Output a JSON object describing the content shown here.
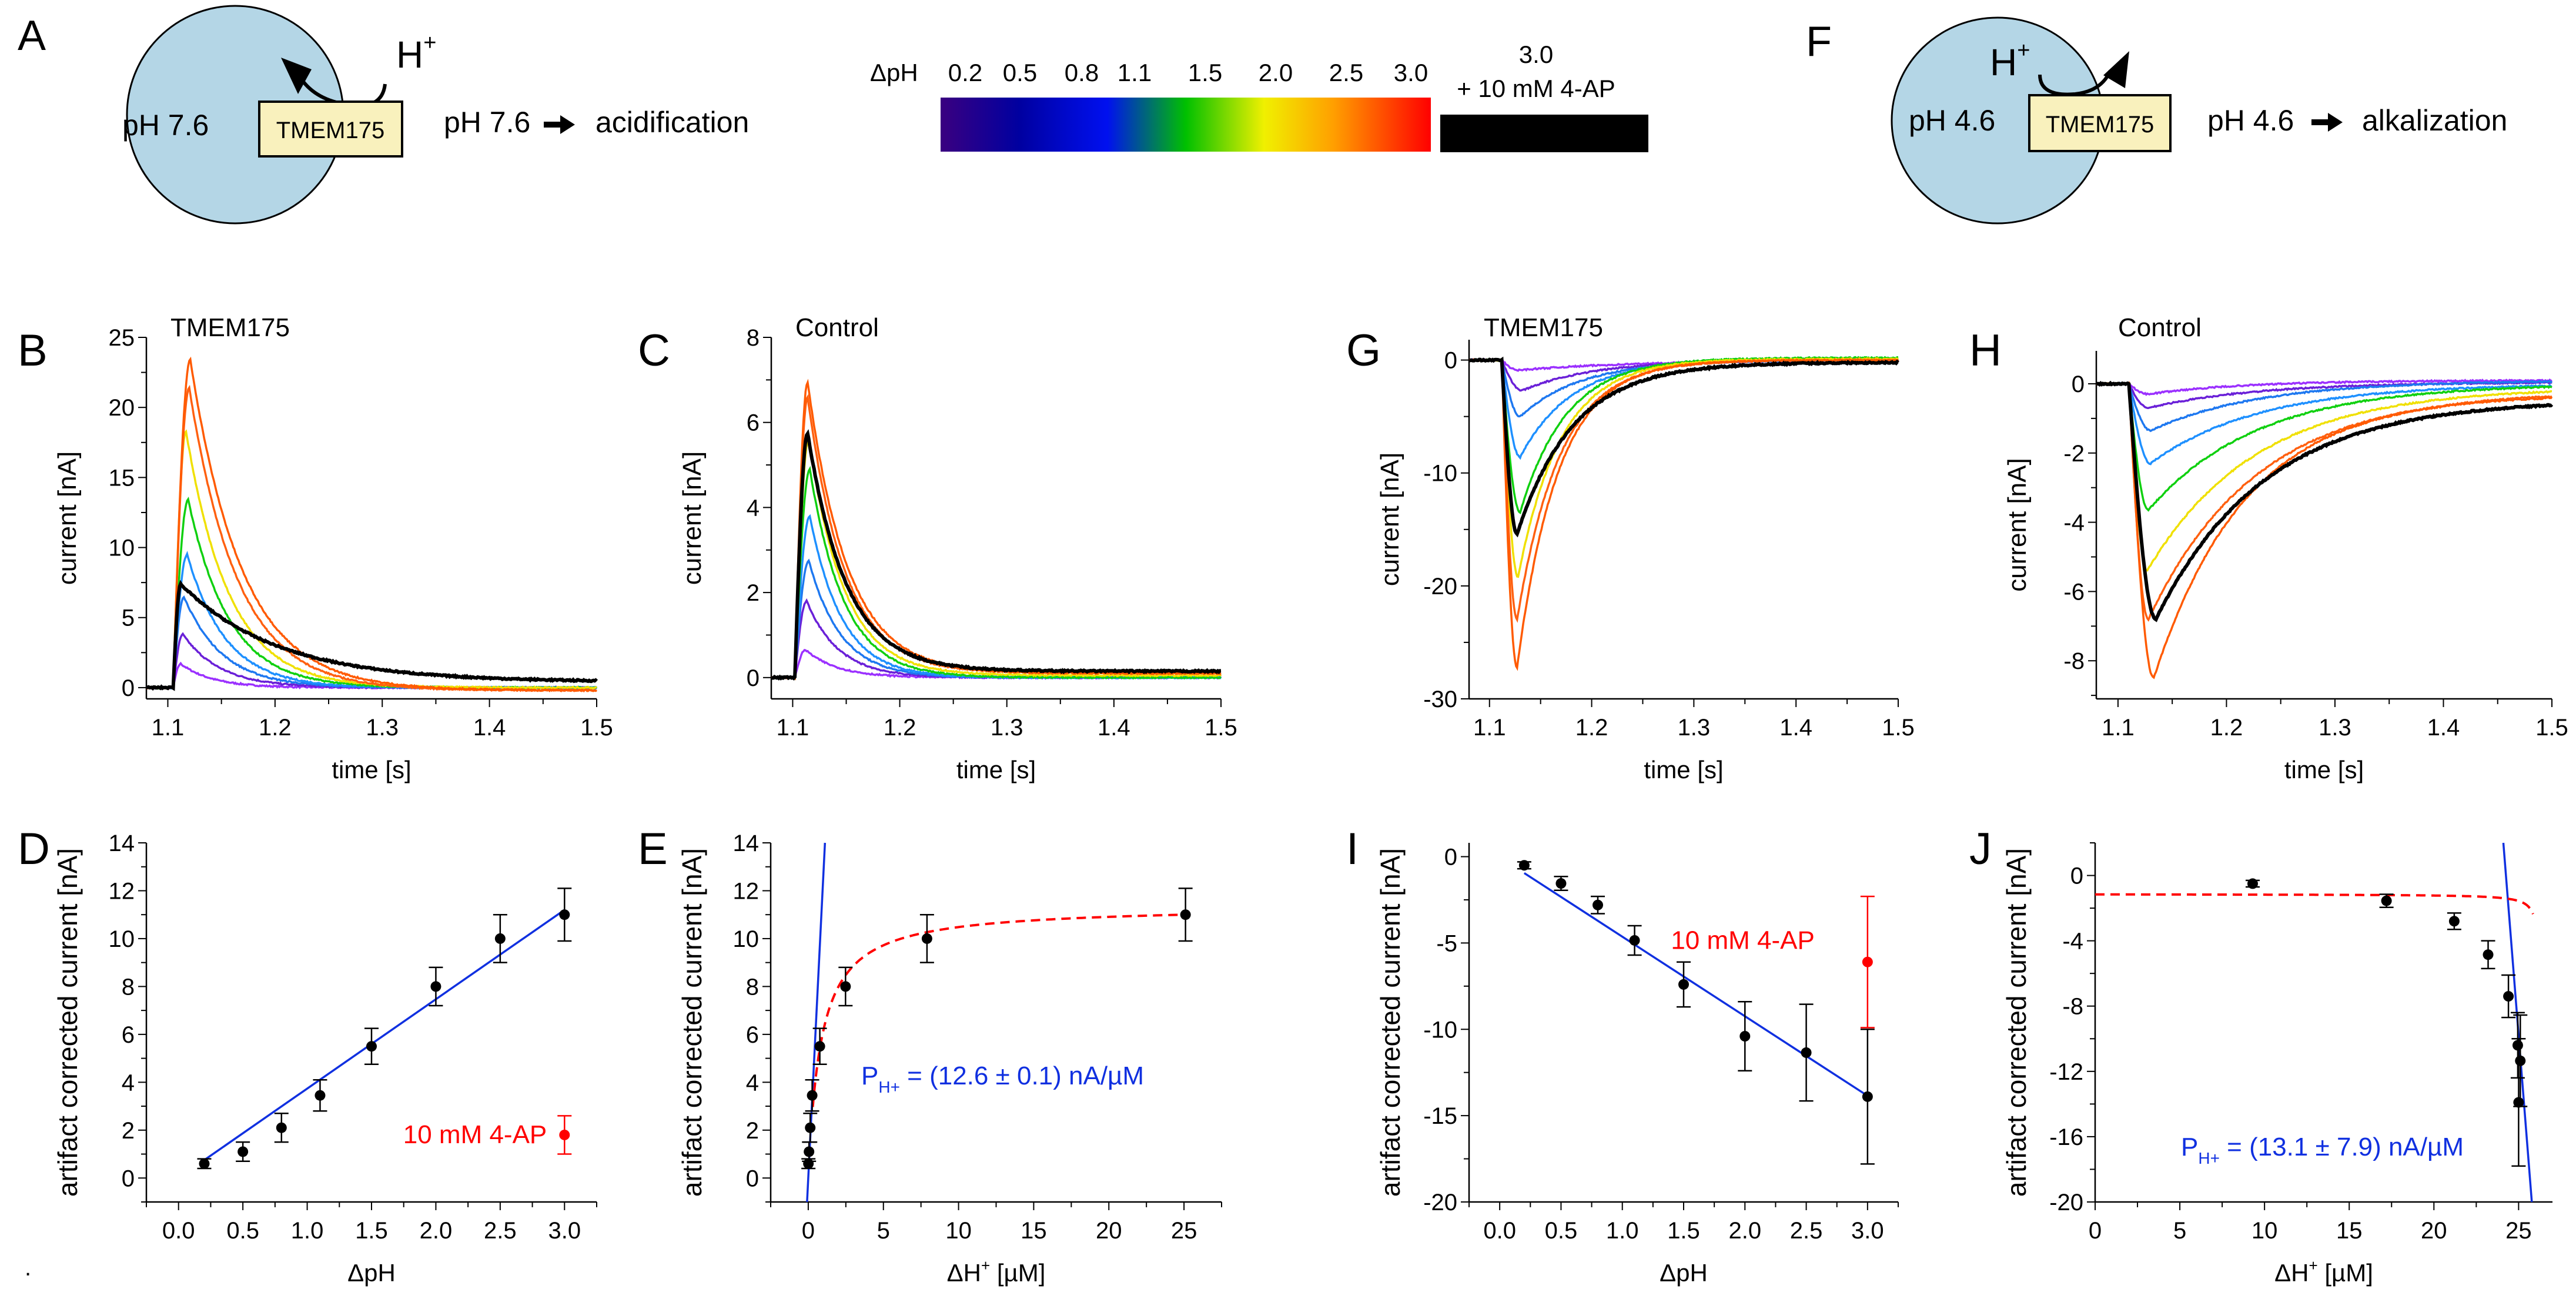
{
  "schematics": [
    {
      "id": "A",
      "letter": "A",
      "vesicle_label": "pH 7.6",
      "protein_label": "TMEM175",
      "ion_label": "H",
      "ion_charge": "+",
      "direction": "into",
      "result_left": "pH 7.6",
      "result_right": "acidification"
    },
    {
      "id": "F",
      "letter": "F",
      "vesicle_label": "pH 4.6",
      "protein_label": "TMEM175",
      "ion_label": "H",
      "ion_charge": "+",
      "direction": "out",
      "result_left": "pH 4.6",
      "result_right": "alkalization"
    }
  ],
  "colorbar": {
    "label": "ΔpH",
    "ticks": [
      "0.2",
      "0.5",
      "0.8",
      "1.1",
      "1.5",
      "2.0",
      "2.5",
      "3.0"
    ],
    "gradient_colors": [
      "#3a0080",
      "#0000a0",
      "#0010f0",
      "#00c000",
      "#f0f000",
      "#ffa000",
      "#ff0000"
    ],
    "extra_label_line1": "3.0",
    "extra_label_line2": "+ 10 mM 4-AP",
    "extra_color": "#000000"
  },
  "trace_colors": [
    "#9b30ff",
    "#6a20d8",
    "#1e78f0",
    "#1e90ff",
    "#10d010",
    "#f0e000",
    "#ff6010",
    "#ff5a00"
  ],
  "blocker_color": "#000000",
  "fit_blue": "#1030e0",
  "fit_red": "#ff0000",
  "chart_data": [
    {
      "id": "B",
      "letter": "B",
      "type": "line",
      "title": "TMEM175",
      "xlabel": "time [s]",
      "ylabel": "current [nA]",
      "xlim": [
        1.08,
        1.5
      ],
      "ylim": [
        -0.8,
        25
      ],
      "xticks": [
        1.1,
        1.2,
        1.3,
        1.4,
        1.5
      ],
      "xtick_labels": [
        "1.1",
        "1.2",
        "1.3",
        "1.4",
        "1.5"
      ],
      "yticks": [
        0,
        5,
        10,
        15,
        20,
        25
      ],
      "ytick_labels": [
        "0",
        "5",
        "10",
        "15",
        "20",
        "25"
      ],
      "onset": 1.105,
      "series": [
        {
          "name": "ΔpH 0.2",
          "peak": 1.7,
          "t_peak": 1.112,
          "tau": 0.03,
          "tail": 0.0
        },
        {
          "name": "ΔpH 0.5",
          "peak": 3.8,
          "t_peak": 1.114,
          "tau": 0.035,
          "tail": 0.0
        },
        {
          "name": "ΔpH 0.8",
          "peak": 6.5,
          "t_peak": 1.115,
          "tau": 0.036,
          "tail": 0.0
        },
        {
          "name": "ΔpH 1.1",
          "peak": 9.5,
          "t_peak": 1.118,
          "tau": 0.036,
          "tail": 0.0
        },
        {
          "name": "ΔpH 1.5",
          "peak": 13.4,
          "t_peak": 1.119,
          "tau": 0.038,
          "tail": 0.0
        },
        {
          "name": "ΔpH 2.0",
          "peak": 18.3,
          "t_peak": 1.117,
          "tau": 0.04,
          "tail": 0.0
        },
        {
          "name": "ΔpH 2.5",
          "peak": 21.4,
          "t_peak": 1.12,
          "tau": 0.045,
          "tail": -0.2
        },
        {
          "name": "ΔpH 3.0",
          "peak": 23.4,
          "t_peak": 1.121,
          "tau": 0.048,
          "tail": -0.2
        },
        {
          "name": "ΔpH 3.0 + 10 mM 4-AP",
          "peak": 7.4,
          "t_peak": 1.112,
          "tau": 0.09,
          "tail": 0.4,
          "blocker": true
        }
      ]
    },
    {
      "id": "C",
      "letter": "C",
      "type": "line",
      "title": "Control",
      "xlabel": "time [s]",
      "ylabel": "current [nA]",
      "xlim": [
        1.08,
        1.5
      ],
      "ylim": [
        -0.5,
        8
      ],
      "xticks": [
        1.1,
        1.2,
        1.3,
        1.4,
        1.5
      ],
      "xtick_labels": [
        "1.1",
        "1.2",
        "1.3",
        "1.4",
        "1.5"
      ],
      "yticks": [
        0,
        2,
        4,
        6,
        8
      ],
      "ytick_labels": [
        "0",
        "2",
        "4",
        "6",
        "8"
      ],
      "onset": 1.102,
      "series": [
        {
          "name": "ΔpH 0.2",
          "peak": 0.65,
          "t_peak": 1.112,
          "tau": 0.03,
          "tail": 0.0
        },
        {
          "name": "ΔpH 0.5",
          "peak": 1.8,
          "t_peak": 1.113,
          "tau": 0.03,
          "tail": 0.0
        },
        {
          "name": "ΔpH 0.8",
          "peak": 2.75,
          "t_peak": 1.115,
          "tau": 0.03,
          "tail": 0.0
        },
        {
          "name": "ΔpH 1.1",
          "peak": 3.8,
          "t_peak": 1.116,
          "tau": 0.03,
          "tail": 0.0
        },
        {
          "name": "ΔpH 1.5",
          "peak": 4.9,
          "t_peak": 1.116,
          "tau": 0.032,
          "tail": 0.0
        },
        {
          "name": "ΔpH 2.0",
          "peak": 5.6,
          "t_peak": 1.115,
          "tau": 0.033,
          "tail": 0.05
        },
        {
          "name": "ΔpH 2.5",
          "peak": 6.6,
          "t_peak": 1.114,
          "tau": 0.035,
          "tail": 0.1
        },
        {
          "name": "ΔpH 3.0",
          "peak": 6.95,
          "t_peak": 1.114,
          "tau": 0.037,
          "tail": 0.1
        },
        {
          "name": "ΔpH 3.0 + 10 mM 4-AP",
          "peak": 5.75,
          "t_peak": 1.114,
          "tau": 0.036,
          "tail": 0.15,
          "blocker": true
        }
      ]
    },
    {
      "id": "G",
      "letter": "G",
      "type": "line",
      "title": "TMEM175",
      "xlabel": "time [s]",
      "ylabel": "current [nA]",
      "xlim": [
        1.08,
        1.5
      ],
      "ylim": [
        -30,
        1.8
      ],
      "xticks": [
        1.1,
        1.2,
        1.3,
        1.4,
        1.5
      ],
      "xtick_labels": [
        "1.1",
        "1.2",
        "1.3",
        "1.4",
        "1.5"
      ],
      "yticks": [
        -30,
        -20,
        -10,
        0
      ],
      "ytick_labels": [
        "-30",
        "-20",
        "-10",
        "0"
      ],
      "onset": 1.112,
      "series": [
        {
          "name": "ΔpH 0.2",
          "peak": -0.9,
          "t_peak": 1.128,
          "tau": 0.12,
          "tail": 0.0
        },
        {
          "name": "ΔpH 0.5",
          "peak": -2.7,
          "t_peak": 1.132,
          "tau": 0.07,
          "tail": 0.0
        },
        {
          "name": "ΔpH 0.8",
          "peak": -5.0,
          "t_peak": 1.13,
          "tau": 0.06,
          "tail": 0.0
        },
        {
          "name": "ΔpH 1.1",
          "peak": -8.6,
          "t_peak": 1.13,
          "tau": 0.05,
          "tail": 0.0
        },
        {
          "name": "ΔpH 1.5",
          "peak": -13.5,
          "t_peak": 1.13,
          "tau": 0.045,
          "tail": 0.2
        },
        {
          "name": "ΔpH 2.0",
          "peak": -19.2,
          "t_peak": 1.128,
          "tau": 0.042,
          "tail": 0.1
        },
        {
          "name": "ΔpH 2.5",
          "peak": -23.0,
          "t_peak": 1.127,
          "tau": 0.042,
          "tail": 0.0
        },
        {
          "name": "ΔpH 3.0",
          "peak": -27.2,
          "t_peak": 1.127,
          "tau": 0.04,
          "tail": 0.0
        },
        {
          "name": "ΔpH 3.0 + 10 mM 4-AP",
          "peak": -15.4,
          "t_peak": 1.127,
          "tau": 0.055,
          "tail": -0.2,
          "blocker": true
        }
      ]
    },
    {
      "id": "H",
      "letter": "H",
      "type": "line",
      "title": "Control",
      "xlabel": "time [s]",
      "ylabel": "current [nA]",
      "xlim": [
        1.08,
        1.5
      ],
      "ylim": [
        -9.1,
        0.95
      ],
      "xticks": [
        1.1,
        1.2,
        1.3,
        1.4,
        1.5
      ],
      "xtick_labels": [
        "1.1",
        "1.2",
        "1.3",
        "1.4",
        "1.5"
      ],
      "yticks": [
        -8,
        -6,
        -4,
        -2,
        0
      ],
      "ytick_labels": [
        "-8",
        "-6",
        "-4",
        "-2",
        "0"
      ],
      "onset": 1.11,
      "series": [
        {
          "name": "ΔpH 0.2",
          "peak": -0.3,
          "t_peak": 1.128,
          "tau": 0.09,
          "tail": 0.1
        },
        {
          "name": "ΔpH 0.5",
          "peak": -0.7,
          "t_peak": 1.128,
          "tau": 0.1,
          "tail": 0.05
        },
        {
          "name": "ΔpH 0.8",
          "peak": -1.35,
          "t_peak": 1.13,
          "tau": 0.1,
          "tail": 0.1
        },
        {
          "name": "ΔpH 1.1",
          "peak": -2.3,
          "t_peak": 1.13,
          "tau": 0.1,
          "tail": 0.0
        },
        {
          "name": "ΔpH 1.5",
          "peak": -3.65,
          "t_peak": 1.128,
          "tau": 0.1,
          "tail": 0.0
        },
        {
          "name": "ΔpH 2.0",
          "peak": -5.4,
          "t_peak": 1.127,
          "tau": 0.1,
          "tail": -0.1
        },
        {
          "name": "ΔpH 2.5",
          "peak": -6.8,
          "t_peak": 1.128,
          "tau": 0.1,
          "tail": -0.2
        },
        {
          "name": "ΔpH 3.0",
          "peak": -8.5,
          "t_peak": 1.133,
          "tau": 0.085,
          "tail": -0.3
        },
        {
          "name": "ΔpH 3.0 + 10 mM 4-AP",
          "peak": -6.8,
          "t_peak": 1.135,
          "tau": 0.1,
          "tail": -0.45,
          "blocker": true
        }
      ]
    },
    {
      "id": "D",
      "letter": "D",
      "type": "scatter",
      "title": "",
      "xlabel": "ΔpH",
      "ylabel": "artifact corrected current [nA]",
      "xlim": [
        -0.25,
        3.25
      ],
      "ylim": [
        -1,
        14
      ],
      "xticks": [
        0,
        0.5,
        1,
        1.5,
        2,
        2.5,
        3
      ],
      "xtick_labels": [
        "0.0",
        "0.5",
        "1.0",
        "1.5",
        "2.0",
        "2.5",
        "3.0"
      ],
      "yticks": [
        0,
        2,
        4,
        6,
        8,
        10,
        12,
        14
      ],
      "ytick_labels": [
        "0",
        "2",
        "4",
        "6",
        "8",
        "10",
        "12",
        "14"
      ],
      "points": [
        {
          "x": 0.2,
          "y": 0.6,
          "err": 0.2
        },
        {
          "x": 0.5,
          "y": 1.1,
          "err": 0.4
        },
        {
          "x": 0.8,
          "y": 2.1,
          "err": 0.6
        },
        {
          "x": 1.1,
          "y": 3.45,
          "err": 0.65
        },
        {
          "x": 1.5,
          "y": 5.5,
          "err": 0.75
        },
        {
          "x": 2.0,
          "y": 8.0,
          "err": 0.8
        },
        {
          "x": 2.5,
          "y": 10.0,
          "err": 1.0
        },
        {
          "x": 3.0,
          "y": 11.0,
          "err": 1.1
        }
      ],
      "blocker_point": {
        "x": 3.0,
        "y": 1.8,
        "err": 0.8,
        "label": "10 mM 4-AP"
      },
      "linear_fit": {
        "x": [
          0.2,
          3.0
        ],
        "y": [
          0.75,
          11.2
        ]
      }
    },
    {
      "id": "E",
      "letter": "E",
      "type": "scatter",
      "title": "",
      "xlabel": "ΔH",
      "xlabel_sup": "+",
      "xlabel_unit": " [µM]",
      "ylabel": "artifact corrected current [nA]",
      "xlim": [
        -2.5,
        27.5
      ],
      "ylim": [
        -1,
        14
      ],
      "xticks": [
        0,
        5,
        10,
        15,
        20,
        25
      ],
      "xtick_labels": [
        "0",
        "5",
        "10",
        "15",
        "20",
        "25"
      ],
      "yticks": [
        0,
        2,
        4,
        6,
        8,
        10,
        12,
        14
      ],
      "ytick_labels": [
        "0",
        "2",
        "4",
        "6",
        "8",
        "10",
        "12",
        "14"
      ],
      "points": [
        {
          "x": 0.01,
          "y": 0.6,
          "err": 0.2
        },
        {
          "x": 0.05,
          "y": 1.1,
          "err": 0.4
        },
        {
          "x": 0.13,
          "y": 2.1,
          "err": 0.6
        },
        {
          "x": 0.26,
          "y": 3.45,
          "err": 0.65
        },
        {
          "x": 0.77,
          "y": 5.5,
          "err": 0.75
        },
        {
          "x": 2.48,
          "y": 8.0,
          "err": 0.8
        },
        {
          "x": 7.9,
          "y": 10.0,
          "err": 1.0
        },
        {
          "x": 25.1,
          "y": 11.0,
          "err": 1.1
        }
      ],
      "linear_fit": {
        "slope": 12.6,
        "intercept": 0,
        "y_range": [
          -1,
          14
        ]
      },
      "saturation_fit": {
        "imax": 11.5,
        "k": 0.85,
        "x_range": [
          0.3,
          25.1
        ]
      },
      "annotation": {
        "main": "P",
        "sub": "H+",
        "rest": " = (12.6 ± 0.1) nA/µM"
      }
    },
    {
      "id": "I",
      "letter": "I",
      "type": "scatter",
      "title": "",
      "xlabel": "ΔpH",
      "ylabel": "artifact corrected current [nA]",
      "xlim": [
        -0.25,
        3.25
      ],
      "ylim": [
        -20,
        0.8
      ],
      "xticks": [
        0,
        0.5,
        1,
        1.5,
        2,
        2.5,
        3
      ],
      "xtick_labels": [
        "0.0",
        "0.5",
        "1.0",
        "1.5",
        "2.0",
        "2.5",
        "3.0"
      ],
      "yticks": [
        -20,
        -15,
        -10,
        -5,
        0
      ],
      "ytick_labels": [
        "-20",
        "-15",
        "-10",
        "-5",
        "0"
      ],
      "points": [
        {
          "x": 0.2,
          "y": -0.5,
          "err": 0.2
        },
        {
          "x": 0.5,
          "y": -1.55,
          "err": 0.4
        },
        {
          "x": 0.8,
          "y": -2.8,
          "err": 0.5
        },
        {
          "x": 1.1,
          "y": -4.85,
          "err": 0.85
        },
        {
          "x": 1.5,
          "y": -7.4,
          "err": 1.3
        },
        {
          "x": 2.0,
          "y": -10.4,
          "err": 2.0
        },
        {
          "x": 2.5,
          "y": -11.35,
          "err": 2.8
        },
        {
          "x": 3.0,
          "y": -13.9,
          "err": 3.9
        }
      ],
      "blocker_point": {
        "x": 3.0,
        "y": -6.1,
        "err": 3.8,
        "label": "10 mM 4-AP"
      },
      "linear_fit": {
        "x": [
          0.2,
          3.0
        ],
        "y": [
          -0.95,
          -13.85
        ]
      }
    },
    {
      "id": "J",
      "letter": "J",
      "type": "scatter",
      "title": "",
      "xlabel": "ΔH",
      "xlabel_sup": "+",
      "xlabel_unit": " [µM]",
      "ylabel": "artifact corrected current [nA]",
      "xlim": [
        0,
        27
      ],
      "ylim": [
        -20,
        2
      ],
      "xticks": [
        0,
        5,
        10,
        15,
        20,
        25
      ],
      "xtick_labels": [
        "0",
        "5",
        "10",
        "15",
        "20",
        "25"
      ],
      "yticks": [
        -20,
        -16,
        -12,
        -8,
        -4,
        0
      ],
      "ytick_labels": [
        "-20",
        "-16",
        "-12",
        "-8",
        "-4",
        "0"
      ],
      "points": [
        {
          "x": 9.3,
          "y": -0.5,
          "err": 0.2
        },
        {
          "x": 17.2,
          "y": -1.55,
          "err": 0.4
        },
        {
          "x": 21.2,
          "y": -2.8,
          "err": 0.5
        },
        {
          "x": 23.2,
          "y": -4.85,
          "err": 0.85
        },
        {
          "x": 24.4,
          "y": -7.4,
          "err": 1.3
        },
        {
          "x": 24.95,
          "y": -10.4,
          "err": 2.0
        },
        {
          "x": 25.1,
          "y": -11.35,
          "err": 2.8
        },
        {
          "x": 25.0,
          "y": -13.9,
          "err": 3.9
        }
      ],
      "linear_fit": {
        "slope": -13.1,
        "x0": 24.1,
        "y0": 2,
        "y_range": [
          -20,
          2
        ]
      },
      "saturation_fit": {
        "baseline": -1.2,
        "x_range": [
          0,
          25.85
        ],
        "x_asym": 26.3
      },
      "annotation": {
        "main": "P",
        "sub": "H+",
        "rest": " = (13.1 ± 7.9) nA/µM"
      }
    }
  ],
  "footnote_mark": "."
}
